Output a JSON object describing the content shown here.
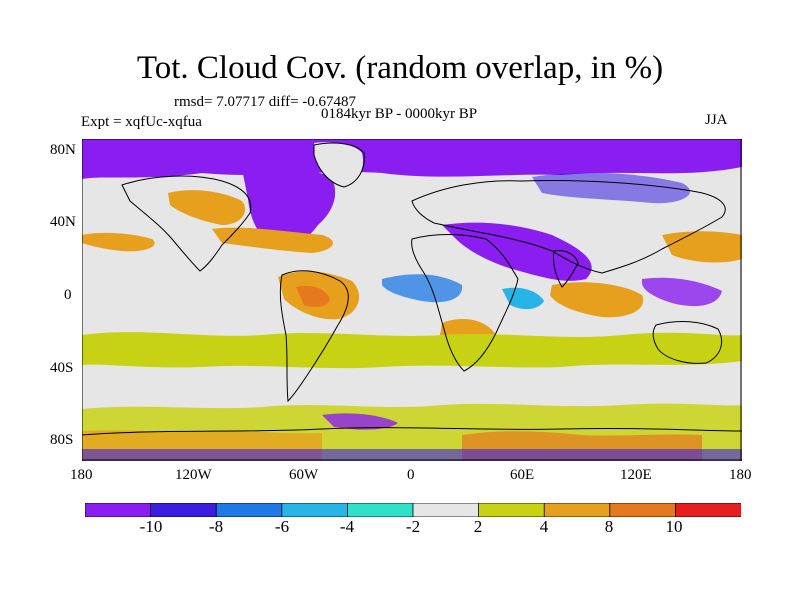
{
  "plot": {
    "title": "Tot. Cloud Cov. (random overlap, in %)",
    "stats": "rmsd= 7.07717  diff= -0.67487",
    "period": "0184kyr BP - 0000kyr BP",
    "experiment": "Expt = xqfUc-xqfua",
    "season": "JJA"
  },
  "axes": {
    "lat_labels": [
      "80N",
      "40N",
      "0",
      "40S",
      "80S"
    ],
    "lon_labels": [
      "180",
      "120W",
      "60W",
      "0",
      "60E",
      "120E",
      "180"
    ]
  },
  "colorbar": {
    "labels": [
      "-10",
      "-8",
      "-6",
      "-4",
      "-2",
      "2",
      "4",
      "8",
      "10"
    ],
    "colors": [
      "#8a1ef0",
      "#3a1ee0",
      "#1e78e6",
      "#28b4e6",
      "#30e0c8",
      "#e6e6e6",
      "#c8d214",
      "#e6a01e",
      "#e6781e",
      "#e61e1e"
    ]
  }
}
